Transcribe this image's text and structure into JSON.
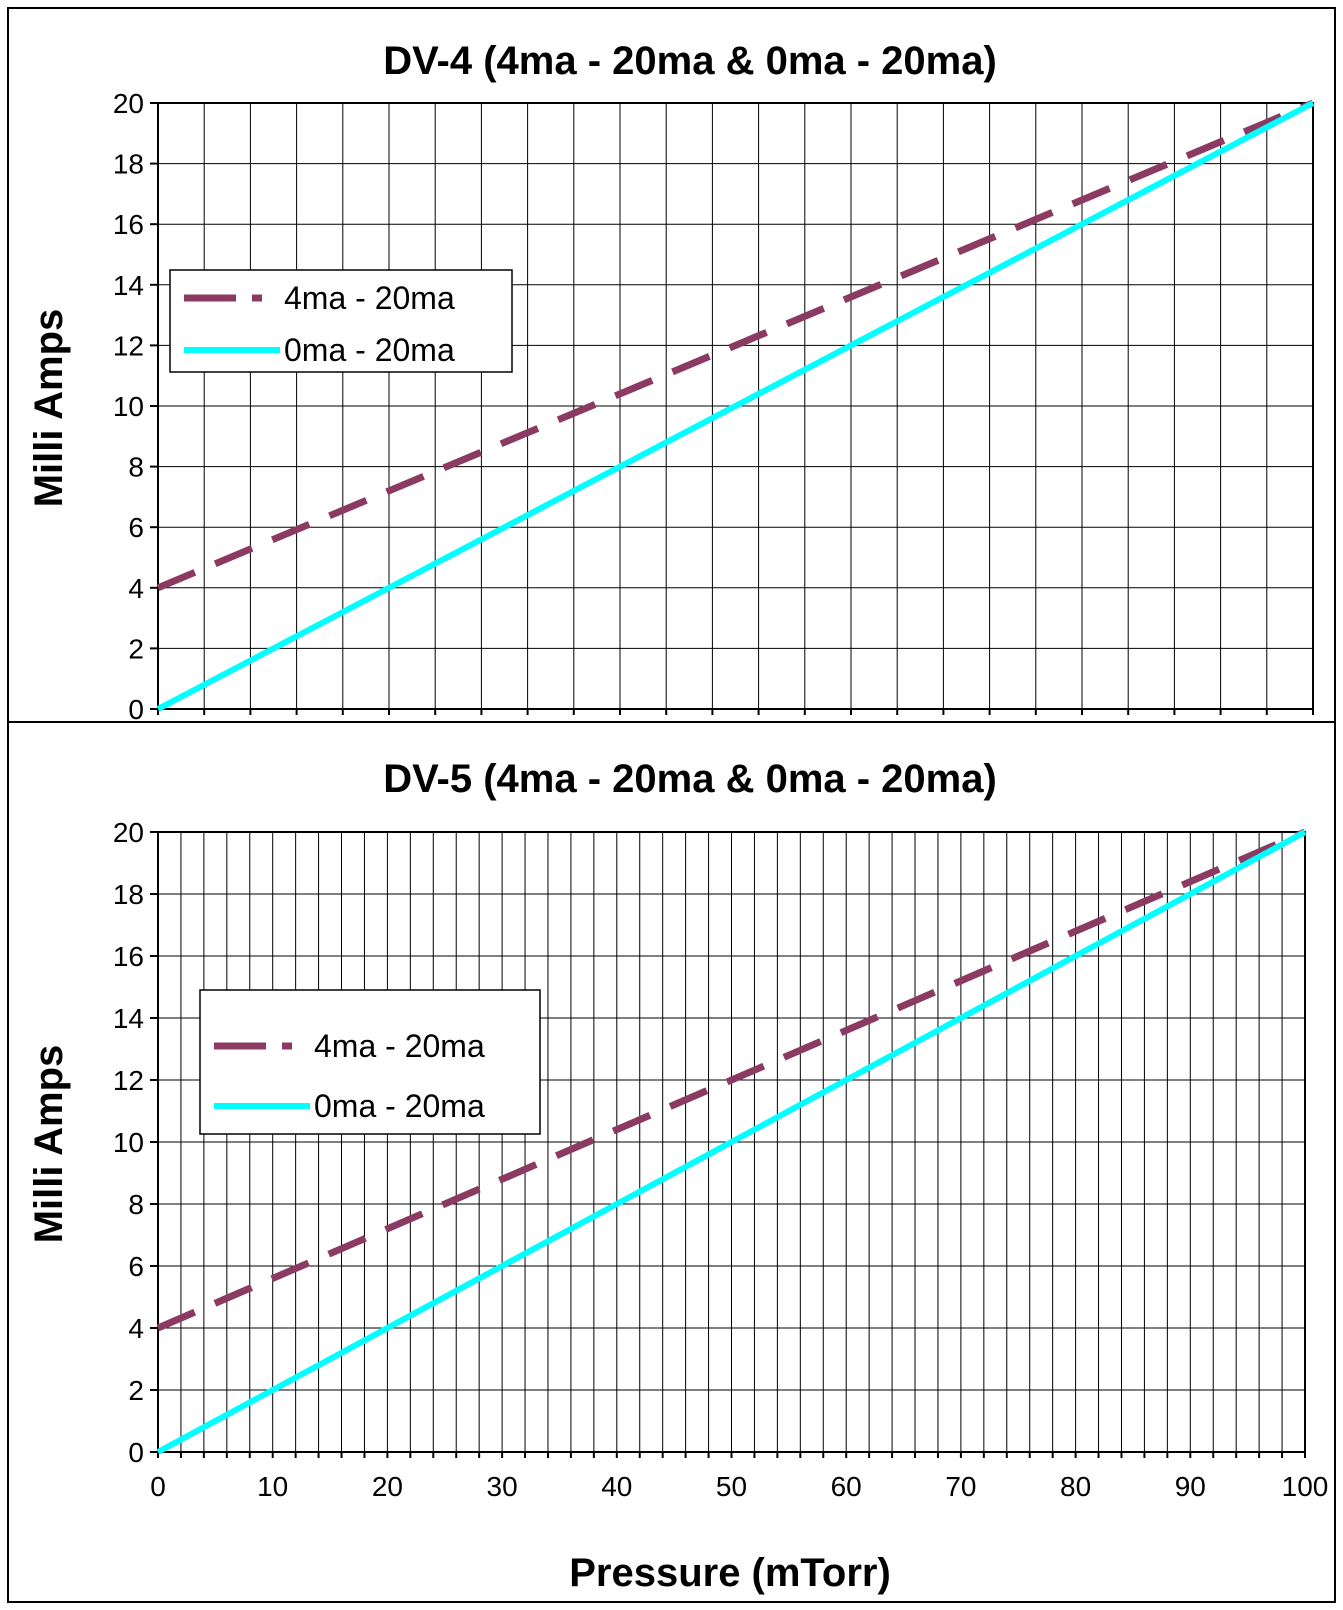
{
  "chart_data": [
    {
      "type": "line",
      "title": "DV-4 (4ma - 20ma & 0ma - 20ma)",
      "xlabel": "",
      "ylabel": "Milli Amps",
      "xlim": [
        0,
        100
      ],
      "ylim": [
        0,
        20
      ],
      "y_ticks": [
        0,
        2,
        4,
        6,
        8,
        10,
        12,
        14,
        16,
        18,
        20
      ],
      "x_ticks": [],
      "x_minor_step": 4,
      "grid": true,
      "legend": "left",
      "series": [
        {
          "name": "4ma - 20ma",
          "style": "dashed",
          "color": "#8b3a62",
          "x": [
            0,
            100
          ],
          "y": [
            4,
            20
          ]
        },
        {
          "name": "0ma - 20ma",
          "style": "solid",
          "color": "#00ffff",
          "x": [
            0,
            100
          ],
          "y": [
            0,
            20
          ]
        }
      ]
    },
    {
      "type": "line",
      "title": "DV-5 (4ma - 20ma & 0ma - 20ma)",
      "xlabel": "Pressure (mTorr)",
      "ylabel": "Milli Amps",
      "xlim": [
        0,
        100
      ],
      "ylim": [
        0,
        20
      ],
      "y_ticks": [
        0,
        2,
        4,
        6,
        8,
        10,
        12,
        14,
        16,
        18,
        20
      ],
      "x_ticks": [
        0,
        10,
        20,
        30,
        40,
        50,
        60,
        70,
        80,
        90,
        100
      ],
      "x_minor_step": 2,
      "grid": true,
      "legend": "left",
      "series": [
        {
          "name": "4ma - 20ma",
          "style": "dashed",
          "color": "#8b3a62",
          "x": [
            0,
            100
          ],
          "y": [
            4,
            20
          ]
        },
        {
          "name": "0ma - 20ma",
          "style": "solid",
          "color": "#00ffff",
          "x": [
            0,
            100
          ],
          "y": [
            0,
            20
          ]
        }
      ]
    }
  ]
}
